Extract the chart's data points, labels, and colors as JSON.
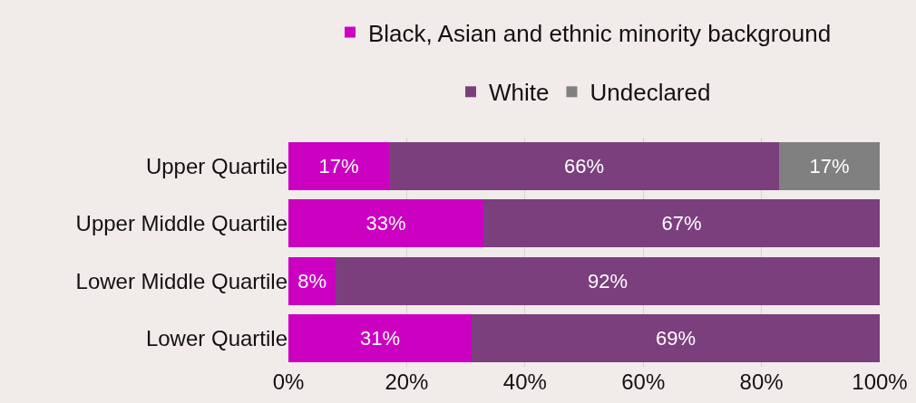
{
  "chart_data": {
    "type": "bar",
    "orientation": "horizontal",
    "stacked": true,
    "categories": [
      "Upper Quartile",
      "Upper Middle Quartile",
      "Lower Middle Quartile",
      "Lower Quartile"
    ],
    "series": [
      {
        "name": "Black, Asian and ethnic minority background",
        "color": "#cc00c0",
        "values": [
          17,
          33,
          8,
          31
        ],
        "value_labels": [
          "17%",
          "33%",
          "8%",
          "31%"
        ]
      },
      {
        "name": "White",
        "color": "#7b3f7e",
        "values": [
          66,
          67,
          92,
          69
        ],
        "value_labels": [
          "66%",
          "67%",
          "92%",
          "69%"
        ]
      },
      {
        "name": "Undeclared",
        "color": "#808080",
        "values": [
          17,
          null,
          null,
          null
        ],
        "value_labels": [
          "17%",
          null,
          null,
          null
        ]
      }
    ],
    "xlim": [
      0,
      100
    ],
    "xticks": [
      {
        "value": 0,
        "label": "0%"
      },
      {
        "value": 20,
        "label": "20%"
      },
      {
        "value": 40,
        "label": "40%"
      },
      {
        "value": 60,
        "label": "60%"
      },
      {
        "value": 80,
        "label": "80%"
      },
      {
        "value": 100,
        "label": "100%"
      }
    ],
    "grid": "x",
    "legend": "top"
  }
}
